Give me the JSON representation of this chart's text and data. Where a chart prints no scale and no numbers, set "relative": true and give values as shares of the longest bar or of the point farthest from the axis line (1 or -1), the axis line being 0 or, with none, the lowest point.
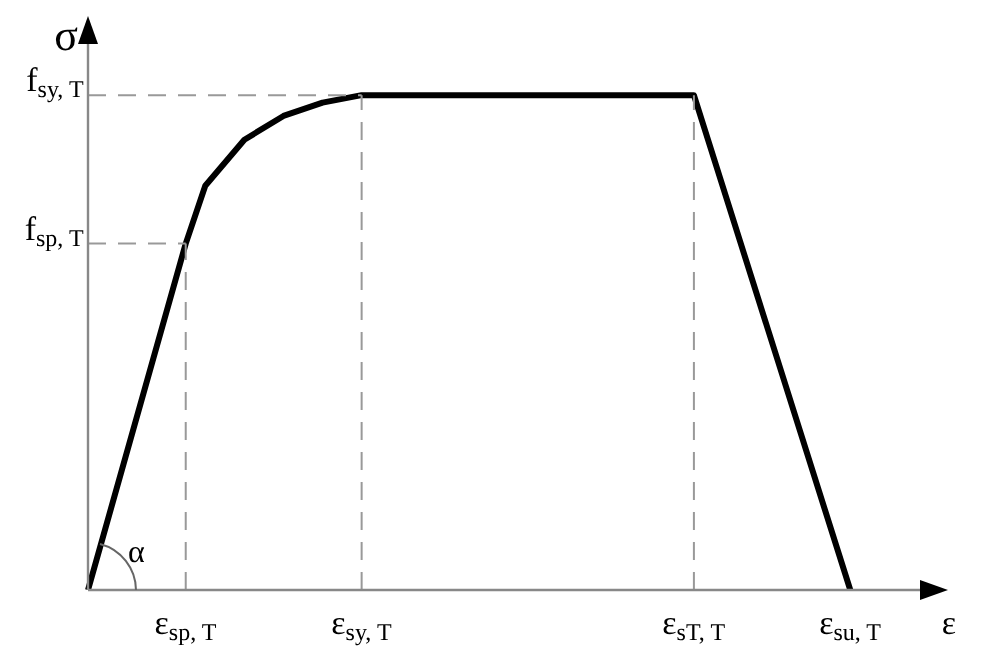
{
  "chart_data": {
    "type": "line",
    "relative": true,
    "xlabel": "ε",
    "ylabel": "σ",
    "marker": "none",
    "line_style": "solid",
    "categories": [
      null,
      null,
      null,
      null,
      null,
      "ε$_{sp, T}$",
      null,
      null,
      null,
      null,
      null,
      null,
      null,
      null,
      "ε$_{sy, T}$",
      null,
      null,
      null,
      null,
      null,
      null,
      null,
      null,
      null,
      null,
      null,
      null,
      null,
      null,
      null,
      null,
      "ε$_{sT, T}$",
      null,
      null,
      null,
      null,
      null,
      null,
      null,
      "ε$_{su, T}$",
      null,
      null,
      null,
      null,
      null
    ],
    "series": [
      {
        "color": "#000000",
        "values": [
          0,
          null,
          null,
          null,
          null,
          0.7,
          0.817,
          null,
          0.91,
          null,
          0.958,
          null,
          0.985,
          null,
          1,
          null,
          null,
          null,
          null,
          null,
          null,
          null,
          null,
          null,
          null,
          null,
          null,
          null,
          null,
          null,
          null,
          1,
          null,
          null,
          null,
          null,
          null,
          null,
          null,
          0,
          null,
          null,
          null,
          null,
          null
        ]
      }
    ],
    "ref_lines": [
      {
        "axis": "y",
        "value": 1,
        "label": "f$_{sy, T}$",
        "line_style": "dashed"
      },
      {
        "axis": "y",
        "value": 0.7,
        "label": "f$_{sp, T}$",
        "line_style": "dashed"
      },
      {
        "axis": "x",
        "value": "ε$_{sp, T}$",
        "line_style": "dashed"
      },
      {
        "axis": "x",
        "value": "ε$_{sy, T}$",
        "line_style": "dashed"
      },
      {
        "axis": "x",
        "value": "ε$_{sT, T}$",
        "line_style": "dashed"
      }
    ],
    "annotations": [
      "α"
    ]
  }
}
